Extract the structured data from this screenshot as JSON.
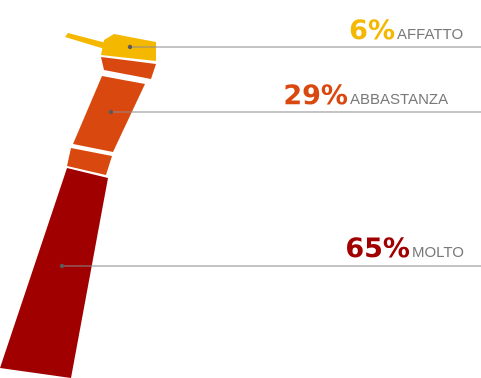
{
  "chart_data": {
    "type": "pie",
    "series": [
      {
        "value": 6,
        "value_label": "6%",
        "label": "AFFATTO",
        "color": "#f5b800"
      },
      {
        "value": 29,
        "value_label": "29%",
        "label": "ABBASTANZA",
        "color": "#d9480f"
      },
      {
        "value": 65,
        "value_label": "65%",
        "label": "MOLTO",
        "color": "#a00000"
      }
    ]
  }
}
